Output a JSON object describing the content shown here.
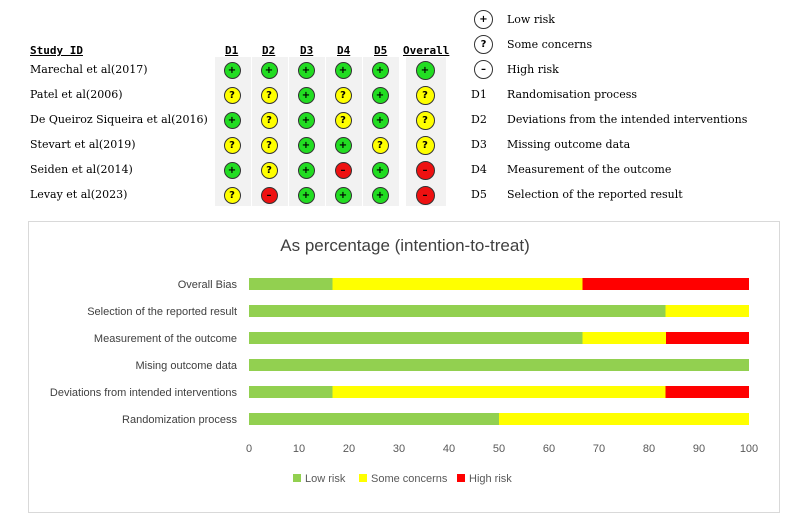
{
  "table": {
    "headers": {
      "study": "Study ID",
      "domains": [
        "D1",
        "D2",
        "D3",
        "D4",
        "D5"
      ],
      "overall": "Overall"
    },
    "symbols": {
      "low": "+",
      "some": "?",
      "high": "–"
    },
    "studies": [
      {
        "name": "Marechal et al(2017)",
        "judgements": [
          "low",
          "low",
          "low",
          "low",
          "low"
        ],
        "overall": "low"
      },
      {
        "name": "Patel et al(2006)",
        "judgements": [
          "some",
          "some",
          "low",
          "some",
          "low"
        ],
        "overall": "some"
      },
      {
        "name": "De Queiroz Siqueira et al(2016)",
        "judgements": [
          "low",
          "some",
          "low",
          "some",
          "low"
        ],
        "overall": "some"
      },
      {
        "name": "Stevart et al(2019)",
        "judgements": [
          "some",
          "some",
          "low",
          "low",
          "some"
        ],
        "overall": "some"
      },
      {
        "name": "Seiden et al(2014)",
        "judgements": [
          "low",
          "some",
          "low",
          "high",
          "low"
        ],
        "overall": "high"
      },
      {
        "name": "Levay et al(2023)",
        "judgements": [
          "some",
          "high",
          "low",
          "low",
          "low"
        ],
        "overall": "high"
      }
    ]
  },
  "legend": {
    "judgements": [
      {
        "key": "low",
        "label": "Low risk",
        "symbol": "+"
      },
      {
        "key": "some",
        "label": "Some concerns",
        "symbol": "?"
      },
      {
        "key": "high",
        "label": "High risk",
        "symbol": "–"
      }
    ],
    "domains": [
      {
        "key": "D1",
        "desc": "Randomisation process"
      },
      {
        "key": "D2",
        "desc": "Deviations from the intended interventions"
      },
      {
        "key": "D3",
        "desc": "Missing outcome data"
      },
      {
        "key": "D4",
        "desc": "Measurement of the outcome"
      },
      {
        "key": "D5",
        "desc": "Selection of the reported result"
      }
    ]
  },
  "colors": {
    "dot_low": "#22dd22",
    "dot_some": "#ffff00",
    "dot_high": "#ee1111",
    "bar_low": "#92d050",
    "bar_some": "#ffff00",
    "bar_high": "#ff0000"
  },
  "chart_data": {
    "type": "bar",
    "orientation": "horizontal",
    "stacked": true,
    "title": "As percentage (intention-to-treat)",
    "categories": [
      "Overall Bias",
      "Selection of the reported result",
      "Measurement of the outcome",
      "Mising outcome data",
      "Deviations from intended interventions",
      "Randomization process"
    ],
    "series": [
      {
        "name": "Low risk",
        "values": [
          16.7,
          83.3,
          66.7,
          100,
          16.7,
          50
        ]
      },
      {
        "name": "Some concerns",
        "values": [
          50,
          16.7,
          16.7,
          0,
          66.6,
          50
        ]
      },
      {
        "name": "High risk",
        "values": [
          33.3,
          0,
          16.6,
          0,
          16.7,
          0
        ]
      }
    ],
    "xlim": [
      0,
      100
    ],
    "xticks": [
      0,
      10,
      20,
      30,
      40,
      50,
      60,
      70,
      80,
      90,
      100
    ],
    "legend_position": "bottom",
    "grid": false
  }
}
